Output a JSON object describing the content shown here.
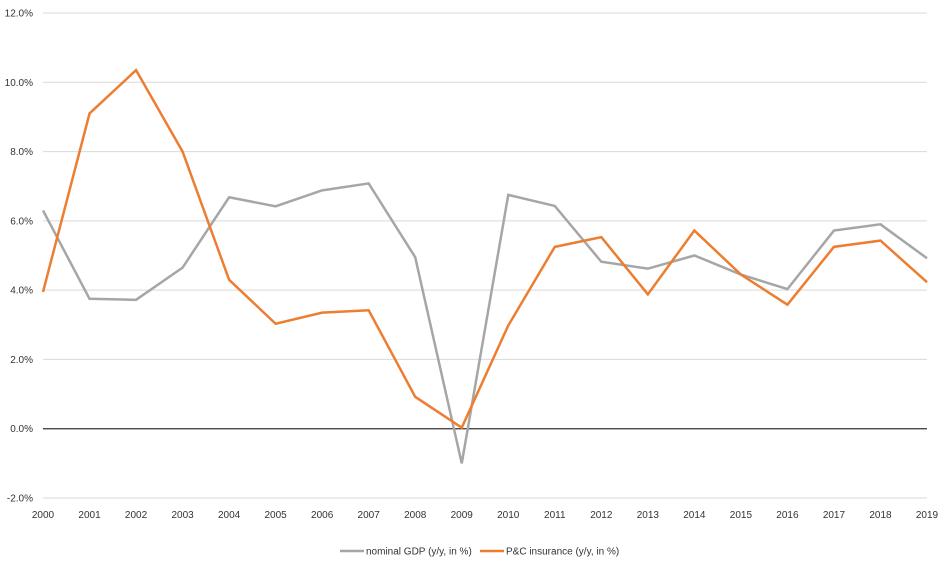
{
  "chart_data": {
    "type": "line",
    "x": [
      "2000",
      "2001",
      "2002",
      "2003",
      "2004",
      "2005",
      "2006",
      "2007",
      "2008",
      "2009",
      "2010",
      "2011",
      "2012",
      "2013",
      "2014",
      "2015",
      "2016",
      "2017",
      "2018",
      "2019"
    ],
    "series": [
      {
        "name": "nominal GDP (y/y, in %)",
        "color": "#a6a6a6",
        "values": [
          6.3,
          3.75,
          3.72,
          4.65,
          6.68,
          6.42,
          6.88,
          7.08,
          4.95,
          -1.0,
          6.75,
          6.43,
          4.82,
          4.62,
          5.0,
          4.45,
          4.03,
          5.72,
          5.9,
          4.92
        ]
      },
      {
        "name": "P&C insurance (y/y, in %)",
        "color": "#ed7d31",
        "values": [
          3.95,
          9.1,
          10.35,
          8.0,
          4.3,
          3.03,
          3.35,
          3.42,
          0.92,
          0.03,
          2.98,
          5.25,
          5.53,
          3.88,
          5.72,
          4.45,
          3.58,
          5.25,
          5.43,
          4.23
        ]
      }
    ],
    "ylim": [
      -2.0,
      12.0
    ],
    "yticks": [
      -2.0,
      0.0,
      2.0,
      4.0,
      6.0,
      8.0,
      10.0,
      12.0
    ],
    "ytick_labels": [
      "-2.0%",
      "0.0%",
      "2.0%",
      "4.0%",
      "6.0%",
      "8.0%",
      "10.0%",
      "12.0%"
    ],
    "title": "",
    "xlabel": "",
    "ylabel": "",
    "grid": true,
    "legend": "bottom-center",
    "zero_line_color": "#333333",
    "grid_color": "#d9d9d9"
  }
}
